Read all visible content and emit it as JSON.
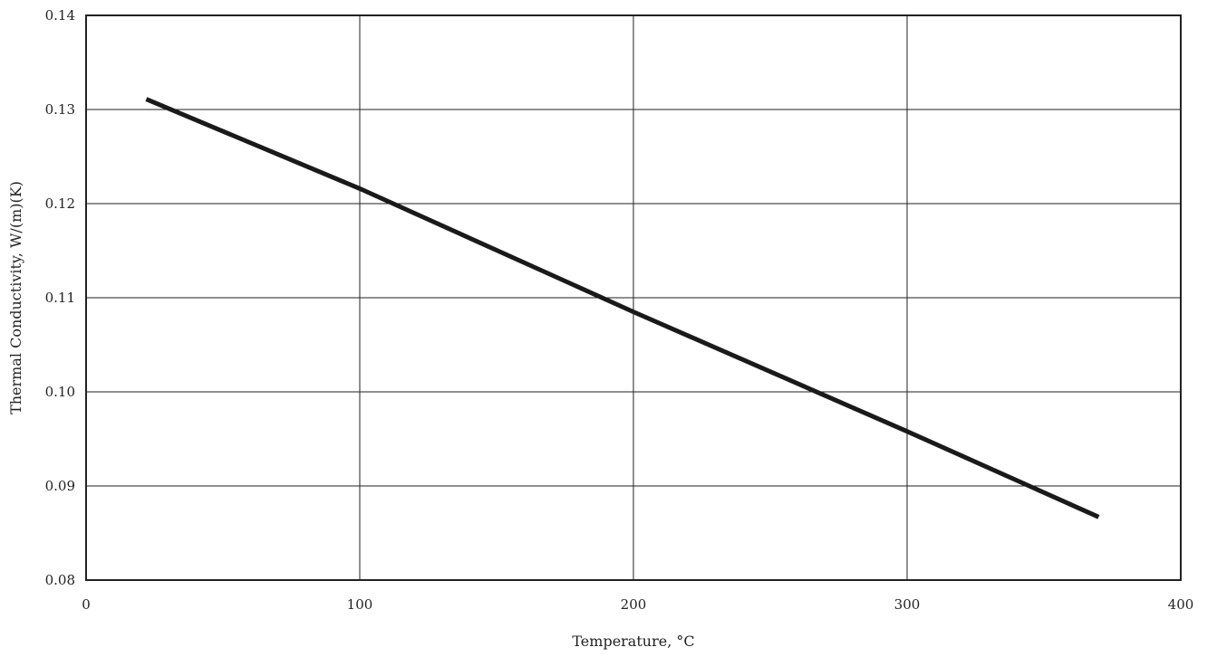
{
  "chart_data": {
    "type": "line",
    "xlabel": "Temperature, °C",
    "ylabel": "Thermal Conductivity, W/(m)(K)",
    "xlim": [
      0,
      400
    ],
    "ylim": [
      0.08,
      0.14
    ],
    "x_ticks": [
      0,
      100,
      200,
      300,
      400
    ],
    "y_ticks": [
      0.08,
      0.09,
      0.1,
      0.11,
      0.12,
      0.13,
      0.14
    ],
    "x_tick_labels": [
      "0",
      "100",
      "200",
      "300",
      "400"
    ],
    "y_tick_labels": [
      "0.08",
      "0.09",
      "0.10",
      "0.11",
      "0.12",
      "0.13",
      "0.14"
    ],
    "grid": true,
    "legend": "none",
    "series": [
      {
        "x": [
          22,
          100,
          200,
          300,
          370
        ],
        "y": [
          0.1311,
          0.1216,
          0.1085,
          0.0958,
          0.0867
        ]
      }
    ],
    "colors": {
      "line": "#1a1a1a",
      "grid": "#222222",
      "text": "#222222"
    }
  }
}
